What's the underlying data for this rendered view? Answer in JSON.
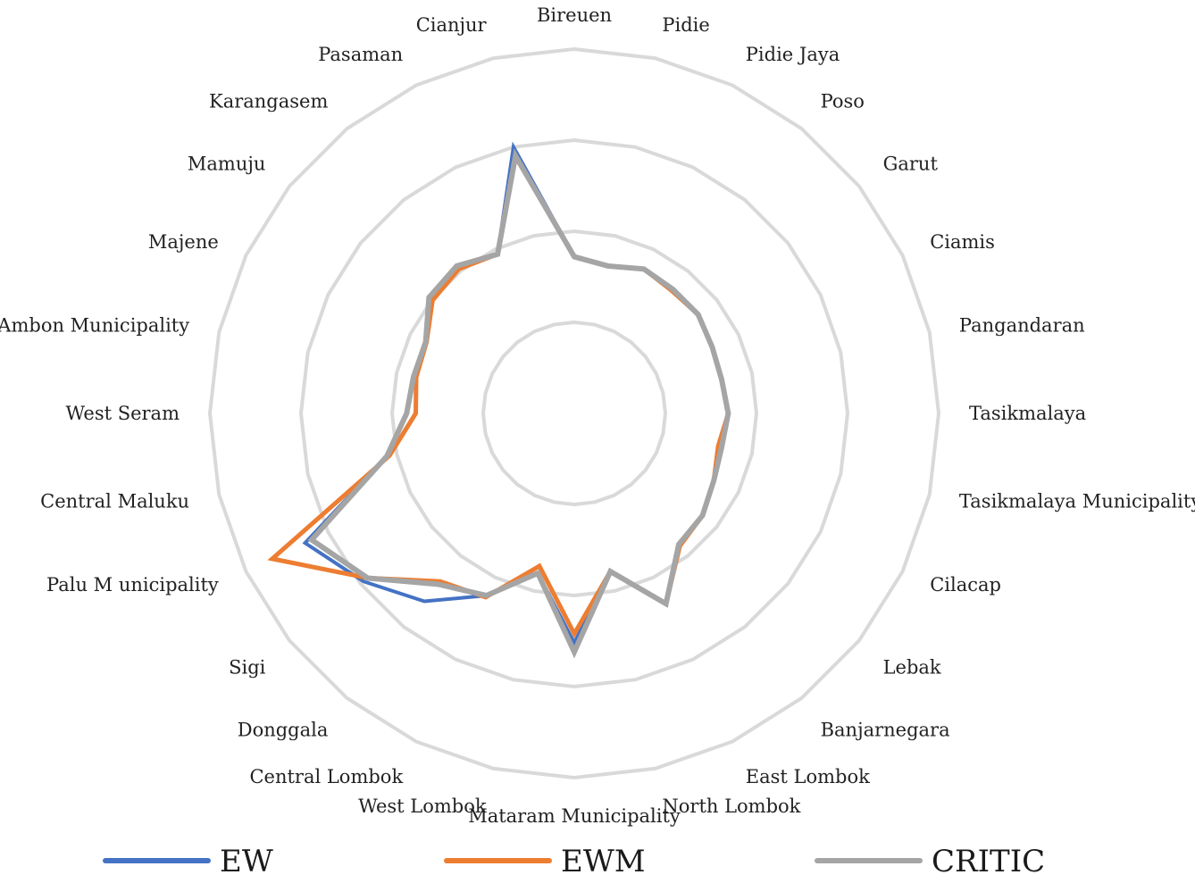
{
  "chart_data": {
    "type": "radar",
    "categories": [
      "Bireuen",
      "Pidie",
      "Pidie Jaya",
      "Poso",
      "Garut",
      "Ciamis",
      "Pangandaran",
      "Tasikmalaya",
      "Tasikmalaya Municipality",
      "Cilacap",
      "Lebak",
      "Banjarnegara",
      "East Lombok",
      "North Lombok",
      "Mataram Municipality",
      "West Lombok",
      "Central Lombok",
      "Donggala",
      "Sigi",
      "Palu M unicipality",
      "Central Maluku",
      "West Seram",
      "Ambon Municipality",
      "Majene",
      "Mamuju",
      "Karangasem",
      "Pasaman",
      "Cianjur"
    ],
    "rings": 4,
    "rlim": [
      0,
      4
    ],
    "grid": true,
    "legend_position": "bottom",
    "series": [
      {
        "name": "EW",
        "color": "#4472C4",
        "values": [
          1.72,
          1.66,
          1.76,
          1.74,
          1.74,
          1.68,
          1.66,
          1.69,
          1.66,
          1.7,
          1.8,
          1.84,
          2.32,
          1.78,
          2.52,
          1.8,
          2.22,
          2.64,
          2.96,
          3.28,
          2.11,
          1.84,
          1.81,
          1.81,
          2.04,
          2.07,
          1.94,
          3.0
        ]
      },
      {
        "name": "EWM",
        "color": "#ED7D31",
        "values": [
          1.72,
          1.66,
          1.76,
          1.72,
          1.74,
          1.68,
          1.66,
          1.69,
          1.62,
          1.7,
          1.8,
          1.86,
          2.32,
          1.78,
          2.42,
          1.72,
          2.24,
          2.36,
          2.9,
          3.68,
          2.08,
          1.74,
          1.78,
          1.8,
          1.99,
          2.03,
          1.94,
          2.89
        ]
      },
      {
        "name": "CRITIC",
        "color": "#A5A5A5",
        "values": [
          1.72,
          1.66,
          1.76,
          1.74,
          1.74,
          1.68,
          1.66,
          1.69,
          1.66,
          1.7,
          1.8,
          1.84,
          2.32,
          1.78,
          2.62,
          1.8,
          2.22,
          2.4,
          2.9,
          3.2,
          2.11,
          1.84,
          1.81,
          1.81,
          2.04,
          2.07,
          1.94,
          2.9
        ]
      }
    ]
  }
}
